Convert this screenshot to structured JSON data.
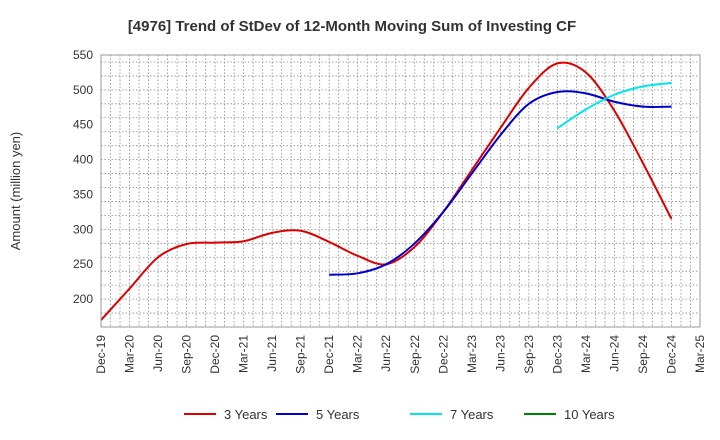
{
  "chart_data": {
    "type": "line",
    "title": "[4976]  Trend of StDev of 12-Month Moving Sum of Investing CF",
    "ylabel": "Amount (million yen)",
    "xlabel": "",
    "ylim": [
      160,
      550
    ],
    "yticks": [
      200,
      250,
      300,
      350,
      400,
      450,
      500,
      550
    ],
    "categories": [
      "Dec-19",
      "Mar-20",
      "Jun-20",
      "Sep-20",
      "Dec-20",
      "Mar-21",
      "Jun-21",
      "Sep-21",
      "Dec-21",
      "Mar-22",
      "Jun-22",
      "Sep-22",
      "Dec-22",
      "Mar-23",
      "Jun-23",
      "Sep-23",
      "Dec-23",
      "Mar-24",
      "Jun-24",
      "Sep-24",
      "Dec-24",
      "Mar-25"
    ],
    "grid": true,
    "legend_position": "bottom",
    "series": [
      {
        "name": "3 Years",
        "color": "#dd0000",
        "values": [
          170,
          215,
          260,
          279,
          281,
          283,
          295,
          298,
          282,
          262,
          250,
          275,
          325,
          385,
          445,
          503,
          538,
          525,
          470,
          395,
          315,
          null
        ]
      },
      {
        "name": "5 Years",
        "color": "#0000cc",
        "values": [
          null,
          null,
          null,
          null,
          null,
          null,
          null,
          null,
          235,
          237,
          250,
          280,
          325,
          380,
          435,
          480,
          497,
          495,
          483,
          476,
          476,
          null
        ]
      },
      {
        "name": "7 Years",
        "color": "#00e5ee",
        "values": [
          null,
          null,
          null,
          null,
          null,
          null,
          null,
          null,
          null,
          null,
          null,
          null,
          null,
          null,
          null,
          null,
          445,
          472,
          493,
          505,
          510,
          null
        ]
      },
      {
        "name": "10 Years",
        "color": "#008000",
        "values": [
          null,
          null,
          null,
          null,
          null,
          null,
          null,
          null,
          null,
          null,
          null,
          null,
          null,
          null,
          null,
          null,
          null,
          null,
          null,
          null,
          null,
          null
        ]
      }
    ]
  }
}
